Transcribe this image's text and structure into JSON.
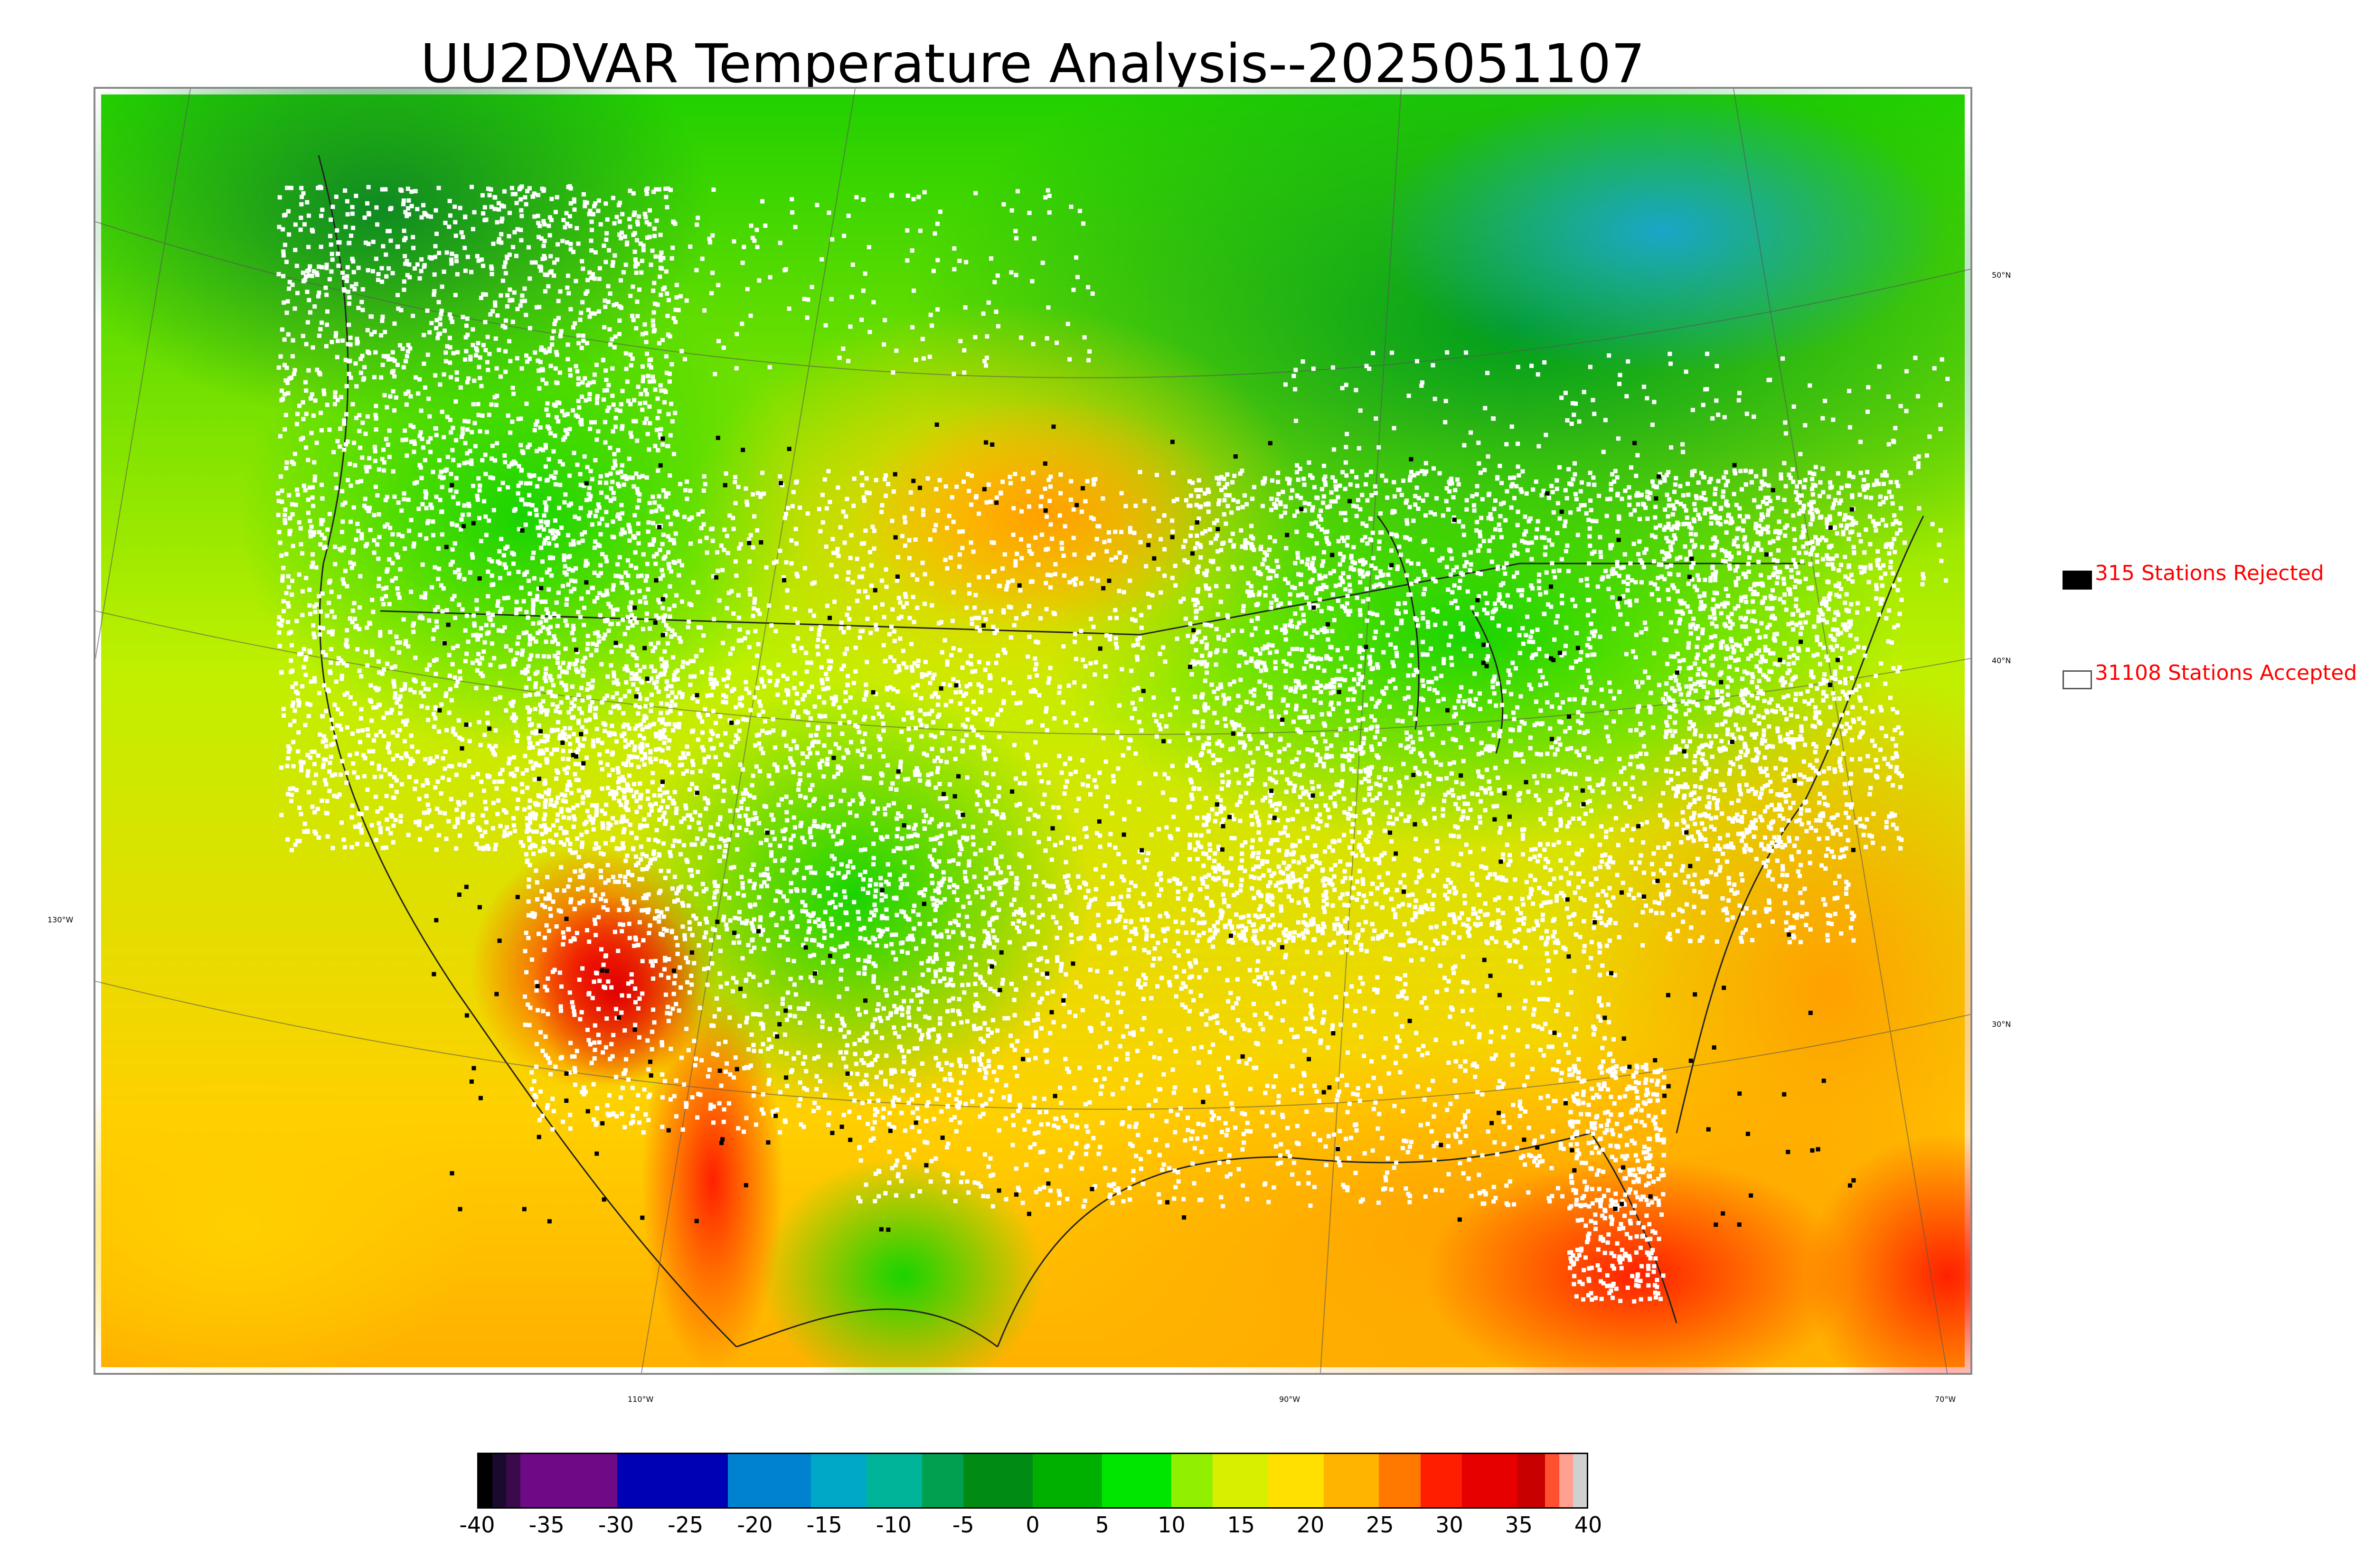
{
  "title": "UU2DVAR Temperature Analysis--2025051107",
  "map": {
    "lat_labels": [
      "50°N",
      "40°N",
      "30°N"
    ],
    "lon_labels": [
      "130°W",
      "110°W",
      "90°W",
      "70°W"
    ],
    "colors": {
      "cold_north": "#008a1a",
      "cool": "#19d400",
      "mild": "#bff000",
      "warm": "#ffcc00",
      "hot": "#ff7a00",
      "very_hot": "#ff2000",
      "extreme": "#d60000",
      "cold_canada": "#1aa6c8",
      "station_accepted": "#ffffff",
      "station_rejected": "#000000",
      "coastline": "#222222"
    }
  },
  "legend": {
    "rejected": {
      "count_label": "315 Stations Rejected",
      "color": "#000000"
    },
    "accepted": {
      "count_label": "31108 Stations Accepted",
      "color": "#ffffff"
    }
  },
  "colorbar": {
    "min": -40,
    "max": 40,
    "tick_labels": [
      "-40",
      "-35",
      "-30",
      "-25",
      "-20",
      "-15",
      "-10",
      "-5",
      "0",
      "5",
      "10",
      "15",
      "20",
      "25",
      "30",
      "35",
      "40"
    ],
    "segments": [
      {
        "from": -40,
        "to": -39,
        "color": "#000000"
      },
      {
        "from": -39,
        "to": -38,
        "color": "#1a0a2e"
      },
      {
        "from": -38,
        "to": -37,
        "color": "#3a0a4a"
      },
      {
        "from": -37,
        "to": -30,
        "color": "#6e0a85"
      },
      {
        "from": -30,
        "to": -22,
        "color": "#0000b4"
      },
      {
        "from": -22,
        "to": -16,
        "color": "#0082d0"
      },
      {
        "from": -16,
        "to": -12,
        "color": "#00a8c8"
      },
      {
        "from": -12,
        "to": -8,
        "color": "#00b49a"
      },
      {
        "from": -8,
        "to": -5,
        "color": "#00a050"
      },
      {
        "from": -5,
        "to": 0,
        "color": "#008c14"
      },
      {
        "from": 0,
        "to": 5,
        "color": "#00b000"
      },
      {
        "from": 5,
        "to": 10,
        "color": "#00e600"
      },
      {
        "from": 10,
        "to": 13,
        "color": "#90f000"
      },
      {
        "from": 13,
        "to": 17,
        "color": "#d8f000"
      },
      {
        "from": 17,
        "to": 21,
        "color": "#ffe000"
      },
      {
        "from": 21,
        "to": 25,
        "color": "#ffb400"
      },
      {
        "from": 25,
        "to": 28,
        "color": "#ff7800"
      },
      {
        "from": 28,
        "to": 31,
        "color": "#ff1e00"
      },
      {
        "from": 31,
        "to": 35,
        "color": "#e60000"
      },
      {
        "from": 35,
        "to": 37,
        "color": "#c80000"
      },
      {
        "from": 37,
        "to": 38,
        "color": "#ff5030"
      },
      {
        "from": 38,
        "to": 39,
        "color": "#ffa090"
      },
      {
        "from": 39,
        "to": 40,
        "color": "#d0d0d0"
      }
    ]
  }
}
